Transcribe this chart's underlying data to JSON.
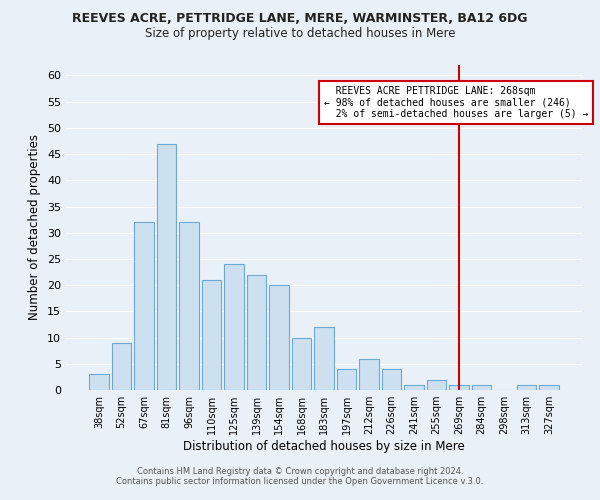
{
  "title1": "REEVES ACRE, PETTRIDGE LANE, MERE, WARMINSTER, BA12 6DG",
  "title2": "Size of property relative to detached houses in Mere",
  "xlabel": "Distribution of detached houses by size in Mere",
  "ylabel": "Number of detached properties",
  "categories": [
    "38sqm",
    "52sqm",
    "67sqm",
    "81sqm",
    "96sqm",
    "110sqm",
    "125sqm",
    "139sqm",
    "154sqm",
    "168sqm",
    "183sqm",
    "197sqm",
    "212sqm",
    "226sqm",
    "241sqm",
    "255sqm",
    "269sqm",
    "284sqm",
    "298sqm",
    "313sqm",
    "327sqm"
  ],
  "values": [
    3,
    9,
    32,
    47,
    32,
    21,
    24,
    22,
    20,
    10,
    12,
    4,
    6,
    4,
    1,
    2,
    1,
    1,
    0,
    1,
    1
  ],
  "bar_color": "#cce0f0",
  "bar_edge_color": "#6aaad4",
  "background_color": "#eaf0f8",
  "grid_color": "#ffffff",
  "vline_x_index": 16,
  "vline_color": "#cc0000",
  "annotation_text": "  REEVES ACRE PETTRIDGE LANE: 268sqm  \n← 98% of detached houses are smaller (246)\n  2% of semi-detached houses are larger (5) →",
  "annotation_box_color": "#ffffff",
  "annotation_box_edge": "#cc0000",
  "ylim": [
    0,
    62
  ],
  "yticks": [
    0,
    5,
    10,
    15,
    20,
    25,
    30,
    35,
    40,
    45,
    50,
    55,
    60
  ],
  "footer1": "Contains HM Land Registry data © Crown copyright and database right 2024.",
  "footer2": "Contains public sector information licensed under the Open Government Licence v.3.0."
}
